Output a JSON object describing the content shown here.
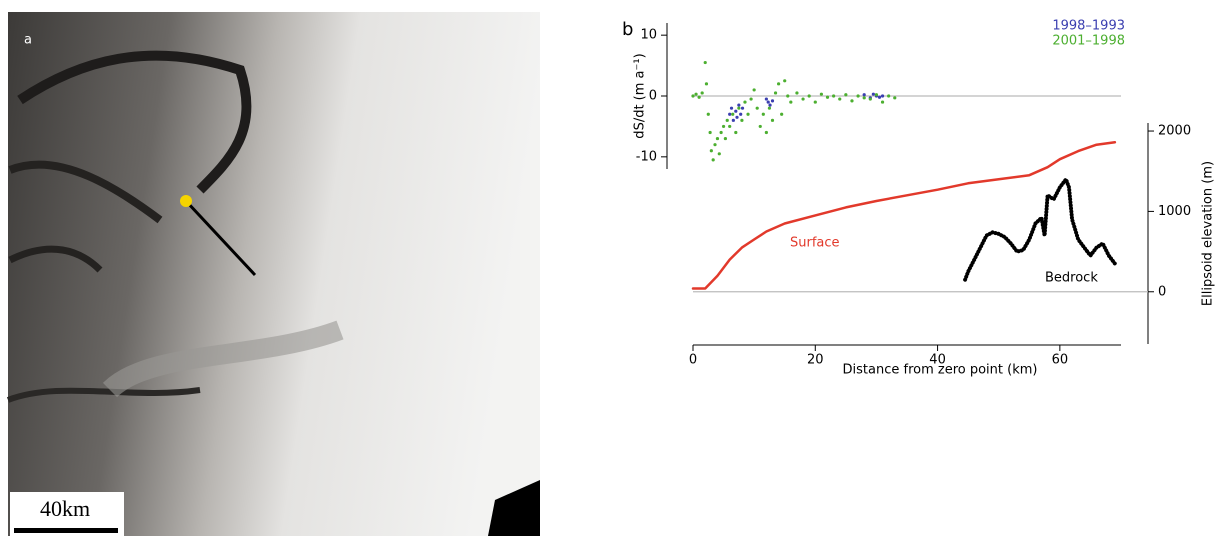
{
  "image_panel": {
    "label": "a",
    "scale_label": "40km"
  },
  "chart_data": [
    {
      "type": "scatter",
      "panel_label": "b",
      "ylabel": "dS/dt (m a⁻¹)",
      "xlim": [
        0,
        70
      ],
      "ylim": [
        -12,
        12
      ],
      "yticks": [
        -10,
        0,
        10
      ],
      "zero_line": true,
      "series": [
        {
          "name": "1998–1993",
          "color": "#3b3fb0",
          "x": [
            6,
            6.3,
            6.6,
            7,
            7.2,
            7.5,
            7.8,
            8.1,
            12,
            12.3,
            12.6,
            13,
            28,
            29,
            29.5,
            30,
            30.5,
            31
          ],
          "values": [
            -3,
            -2,
            -4,
            -2.5,
            -3.5,
            -1.5,
            -3,
            -2,
            -0.5,
            -1,
            -1.5,
            -0.8,
            0.2,
            -0.3,
            0.3,
            0,
            -0.2,
            0
          ]
        },
        {
          "name": "2001–1998",
          "color": "#4caf30",
          "x": [
            0,
            0.5,
            1,
            1.5,
            2,
            2.2,
            2.5,
            2.8,
            3,
            3.3,
            3.6,
            4,
            4.3,
            4.6,
            5,
            5.3,
            5.6,
            6,
            6.5,
            7,
            7.5,
            8,
            8.5,
            9,
            9.5,
            10,
            10.5,
            11,
            11.5,
            12,
            12.5,
            13,
            13.5,
            14,
            14.5,
            15,
            15.5,
            16,
            17,
            18,
            19,
            20,
            21,
            22,
            23,
            24,
            25,
            26,
            27,
            28,
            29,
            30,
            31,
            32,
            33
          ],
          "values": [
            0,
            0.3,
            -0.2,
            0.5,
            5.5,
            2,
            -3,
            -6,
            -9,
            -10.5,
            -8,
            -7,
            -9.5,
            -6,
            -5,
            -7,
            -4,
            -5,
            -3,
            -6,
            -2,
            -4,
            -1,
            -3,
            -0.5,
            1,
            -2,
            -5,
            -3,
            -6,
            -2,
            -4,
            0.5,
            2,
            -3,
            2.5,
            0,
            -1,
            0.5,
            -0.5,
            0,
            -1,
            0.3,
            -0.2,
            0,
            -0.5,
            0.2,
            -0.8,
            0,
            -0.3,
            -0.5,
            0.2,
            -1,
            0,
            -0.3
          ]
        }
      ]
    },
    {
      "type": "line",
      "xlabel": "Distance from zero point (km)",
      "ylabel": "Ellipsoid elevation (m)",
      "xlim": [
        0,
        70
      ],
      "xticks": [
        0,
        20,
        40,
        60
      ],
      "ylim": [
        -650,
        2100
      ],
      "yticks": [
        0,
        1000,
        2000
      ],
      "zero_line": true,
      "series": [
        {
          "name": "Surface",
          "color": "#e2392b",
          "x": [
            0,
            2,
            4,
            6,
            8,
            10,
            12,
            15,
            20,
            25,
            30,
            35,
            40,
            45,
            50,
            55,
            58,
            60,
            63,
            66,
            69
          ],
          "values": [
            40,
            40,
            200,
            400,
            550,
            650,
            750,
            850,
            950,
            1050,
            1130,
            1200,
            1270,
            1350,
            1400,
            1450,
            1550,
            1650,
            1750,
            1830,
            1860
          ]
        },
        {
          "name": "Bedrock",
          "color": "#000000",
          "x": [
            44.5,
            45,
            46,
            47,
            48,
            49,
            50,
            51,
            52,
            53,
            54,
            55,
            56,
            57,
            57.5,
            58,
            59,
            60,
            61,
            61.5,
            62,
            63,
            64,
            65,
            66,
            67,
            68,
            69
          ],
          "values": [
            150,
            250,
            400,
            550,
            700,
            740,
            720,
            680,
            600,
            500,
            520,
            650,
            850,
            920,
            700,
            1200,
            1150,
            1300,
            1400,
            1300,
            900,
            650,
            550,
            450,
            550,
            600,
            450,
            350
          ]
        }
      ]
    }
  ]
}
